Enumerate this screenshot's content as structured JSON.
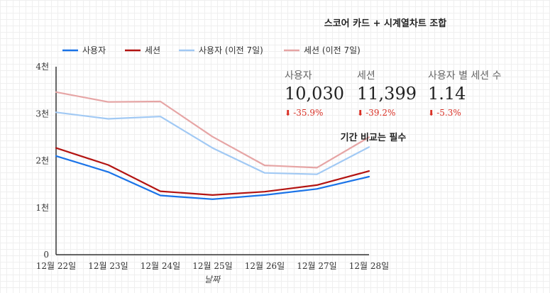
{
  "chart_data": {
    "type": "line",
    "title": "스코어 카드 + 시계열차트 조합",
    "xlabel": "날짜",
    "ylabel": "",
    "categories": [
      "12월 22일",
      "12월 23일",
      "12월 24일",
      "12월 25일",
      "12월 26일",
      "12월 27일",
      "12월 28일"
    ],
    "yticks": [
      "0",
      "1천",
      "2천",
      "3천",
      "4천"
    ],
    "ylim": [
      0,
      4000
    ],
    "legend_position": "top-left",
    "series": [
      {
        "name": "사용자",
        "color": "#1a73e8",
        "values": [
          2100,
          1760,
          1260,
          1180,
          1270,
          1400,
          1660
        ]
      },
      {
        "name": "세션",
        "color": "#b31412",
        "values": [
          2270,
          1910,
          1350,
          1270,
          1340,
          1480,
          1780
        ]
      },
      {
        "name": "사용자 (이전 7일)",
        "color": "#a1c9f4",
        "values": [
          3030,
          2890,
          2940,
          2270,
          1740,
          1710,
          2290
        ]
      },
      {
        "name": "세션 (이전 7일)",
        "color": "#e6a5a5",
        "values": [
          3460,
          3250,
          3260,
          2510,
          1900,
          1850,
          2500
        ]
      }
    ],
    "annotation": "기간 비교는 필수"
  },
  "scorecards": [
    {
      "label": "사용자",
      "value": "10,030",
      "delta": "-35.9%"
    },
    {
      "label": "세션",
      "value": "11,399",
      "delta": "-39.2%"
    },
    {
      "label": "사용자 별 세션 수",
      "value": "1.14",
      "delta": "-5.3%"
    }
  ],
  "delta_arrow": "⬇",
  "delta_color": "#d93025"
}
